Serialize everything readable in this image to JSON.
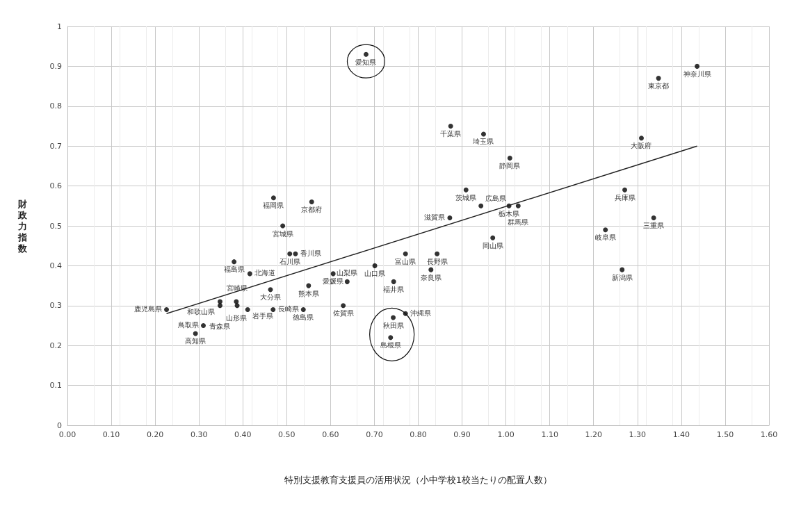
{
  "chart_data": {
    "type": "scatter",
    "xlabel": "特別支援教育支援員の活用状況（小中学校1校当たりの配置人数）",
    "ylabel": "財政力指数",
    "xlim": [
      0,
      1.6
    ],
    "xticks": [
      {
        "value": 0,
        "label": "0.00"
      },
      {
        "value": 0.1,
        "label": "0.10"
      },
      {
        "value": 0.2,
        "label": "0.20"
      },
      {
        "value": 0.3,
        "label": "0.30"
      },
      {
        "value": 0.4,
        "label": "0.40"
      },
      {
        "value": 0.5,
        "label": "0.50"
      },
      {
        "value": 0.6,
        "label": "0.60"
      },
      {
        "value": 0.7,
        "label": "0.70"
      },
      {
        "value": 0.8,
        "label": "0.80"
      },
      {
        "value": 0.9,
        "label": "0.90"
      },
      {
        "value": 1,
        "label": "1.00"
      },
      {
        "value": 1.1,
        "label": "1.10"
      },
      {
        "value": 1.2,
        "label": "1.20"
      },
      {
        "value": 1.3,
        "label": "1.30"
      },
      {
        "value": 1.4,
        "label": "1.40"
      },
      {
        "value": 1.5,
        "label": "1.50"
      },
      {
        "value": 1.6,
        "label": "1.60"
      }
    ],
    "ylim": [
      0,
      1
    ],
    "yticks": [
      0,
      0.1,
      0.2,
      0.3,
      0.4,
      0.5,
      0.6,
      0.7,
      0.8,
      0.9,
      1
    ],
    "grid": true,
    "marker": "circle",
    "series": [
      {
        "color": "#000000",
        "x": [
          0.681,
          1.436,
          1.348,
          0.874,
          0.949,
          1.309,
          1.009,
          0.909,
          0.943,
          1.007,
          1.028,
          0.872,
          1.271,
          1.337,
          1.227,
          1.265,
          0.557,
          0.97,
          0.771,
          0.843,
          0.829,
          0.701,
          0.606,
          0.638,
          0.744,
          0.55,
          0.629,
          0.771,
          0.743,
          0.737,
          0.47,
          0.491,
          0.507,
          0.52,
          0.38,
          0.416,
          0.463,
          0.385,
          0.348,
          0.348,
          0.387,
          0.411,
          0.469,
          0.538,
          0.226,
          0.31,
          0.292
        ],
        "values": [
          0.93,
          0.9,
          0.87,
          0.75,
          0.73,
          0.72,
          0.67,
          0.59,
          0.55,
          0.55,
          0.55,
          0.52,
          0.59,
          0.52,
          0.49,
          0.39,
          0.56,
          0.47,
          0.43,
          0.43,
          0.39,
          0.4,
          0.38,
          0.36,
          0.36,
          0.35,
          0.3,
          0.28,
          0.27,
          0.22,
          0.57,
          0.5,
          0.43,
          0.43,
          0.41,
          0.38,
          0.34,
          0.31,
          0.31,
          0.3,
          0.3,
          0.29,
          0.29,
          0.29,
          0.29,
          0.25,
          0.23
        ]
      },
      {
        "type": "line",
        "color": "#222222",
        "marker": "none",
        "x": [
          0.226,
          1.436
        ],
        "values": [
          0.28,
          0.7
        ]
      }
    ],
    "annotations": [
      {
        "text": "愛知県",
        "x": 0.681,
        "y": 0.93
      },
      {
        "text": "神奈川県",
        "x": 1.436,
        "y": 0.9
      },
      {
        "text": "東京都",
        "x": 1.348,
        "y": 0.87
      },
      {
        "text": "千葉県",
        "x": 0.874,
        "y": 0.75
      },
      {
        "text": "埼玉県",
        "x": 0.949,
        "y": 0.73
      },
      {
        "text": "大阪府",
        "x": 1.309,
        "y": 0.72
      },
      {
        "text": "静岡県",
        "x": 1.009,
        "y": 0.67
      },
      {
        "text": "茨城県",
        "x": 0.909,
        "y": 0.59
      },
      {
        "text": "広島県",
        "x": 0.943,
        "y": 0.55
      },
      {
        "text": "栃木県",
        "x": 1.007,
        "y": 0.55
      },
      {
        "text": "群馬県",
        "x": 1.028,
        "y": 0.55
      },
      {
        "text": "滋賀県",
        "x": 0.872,
        "y": 0.52
      },
      {
        "text": "兵庫県",
        "x": 1.271,
        "y": 0.59
      },
      {
        "text": "三重県",
        "x": 1.337,
        "y": 0.52
      },
      {
        "text": "岐阜県",
        "x": 1.227,
        "y": 0.49
      },
      {
        "text": "新潟県",
        "x": 1.265,
        "y": 0.39
      },
      {
        "text": "京都府",
        "x": 0.557,
        "y": 0.56
      },
      {
        "text": "岡山県",
        "x": 0.97,
        "y": 0.47
      },
      {
        "text": "富山県",
        "x": 0.771,
        "y": 0.43
      },
      {
        "text": "長野県",
        "x": 0.843,
        "y": 0.43
      },
      {
        "text": "奈良県",
        "x": 0.829,
        "y": 0.39
      },
      {
        "text": "山口県",
        "x": 0.701,
        "y": 0.4
      },
      {
        "text": "愛媛県",
        "x": 0.606,
        "y": 0.38
      },
      {
        "text": "山梨県",
        "x": 0.638,
        "y": 0.36
      },
      {
        "text": "福井県",
        "x": 0.744,
        "y": 0.36
      },
      {
        "text": "熊本県",
        "x": 0.55,
        "y": 0.35
      },
      {
        "text": "佐賀県",
        "x": 0.629,
        "y": 0.3
      },
      {
        "text": "沖縄県",
        "x": 0.771,
        "y": 0.28
      },
      {
        "text": "秋田県",
        "x": 0.743,
        "y": 0.27
      },
      {
        "text": "島根県",
        "x": 0.737,
        "y": 0.22
      },
      {
        "text": "福岡県",
        "x": 0.47,
        "y": 0.57
      },
      {
        "text": "宮城県",
        "x": 0.491,
        "y": 0.5
      },
      {
        "text": "石川県",
        "x": 0.507,
        "y": 0.43
      },
      {
        "text": "香川県",
        "x": 0.52,
        "y": 0.43
      },
      {
        "text": "福島県",
        "x": 0.38,
        "y": 0.41
      },
      {
        "text": "北海道",
        "x": 0.416,
        "y": 0.38
      },
      {
        "text": "大分県",
        "x": 0.463,
        "y": 0.34
      },
      {
        "text": "山形県",
        "x": 0.385,
        "y": 0.31
      },
      {
        "text": "青森県",
        "x": 0.348,
        "y": 0.31
      },
      {
        "text": "和歌山県",
        "x": 0.348,
        "y": 0.3
      },
      {
        "text": "宮崎県",
        "x": 0.387,
        "y": 0.3
      },
      {
        "text": "岩手県",
        "x": 0.411,
        "y": 0.29
      },
      {
        "text": "長崎県",
        "x": 0.469,
        "y": 0.29
      },
      {
        "text": "徳島県",
        "x": 0.538,
        "y": 0.29
      },
      {
        "text": "鹿児島県",
        "x": 0.226,
        "y": 0.29
      },
      {
        "text": "鳥取県",
        "x": 0.31,
        "y": 0.25
      },
      {
        "text": "高知県",
        "x": 0.292,
        "y": 0.23
      }
    ]
  }
}
